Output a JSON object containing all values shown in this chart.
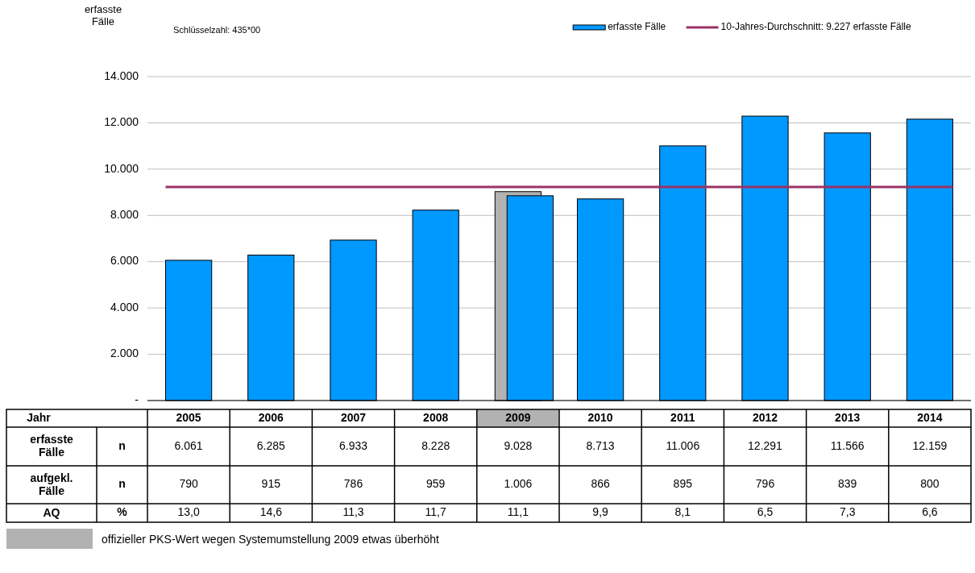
{
  "chart_data": {
    "type": "bar",
    "ylabel": "erfasste Fälle",
    "subtitle": "Schlüsselzahl: 435*00",
    "categories": [
      "2005",
      "2006",
      "2007",
      "2008",
      "2009",
      "2010",
      "2011",
      "2012",
      "2013",
      "2014"
    ],
    "series": [
      {
        "name": "erfasste Fälle",
        "color": "#0099ff",
        "values": [
          6061,
          6285,
          6933,
          8228,
          8850,
          8713,
          11006,
          12291,
          11566,
          12159
        ]
      },
      {
        "color": "#b2b2b2",
        "values": [
          null,
          null,
          null,
          null,
          9028,
          null,
          null,
          null,
          null,
          null
        ]
      }
    ],
    "ref_lines": [
      {
        "axis": "y",
        "value": 9227,
        "label": "10-Jahres-Durchschnitt: 9.227 erfasste Fälle",
        "color": "#993366"
      }
    ],
    "ylim": [
      0,
      14000
    ],
    "yticks": [
      {
        "value": 0,
        "label": "-"
      },
      {
        "value": 2000,
        "label": "2.000"
      },
      {
        "value": 4000,
        "label": "4.000"
      },
      {
        "value": 6000,
        "label": "6.000"
      },
      {
        "value": 8000,
        "label": "8.000"
      },
      {
        "value": 10000,
        "label": "10.000"
      },
      {
        "value": 12000,
        "label": "12.000"
      },
      {
        "value": 14000,
        "label": "14.000"
      }
    ],
    "grid": "y",
    "legend": "top right",
    "annotations": [
      "Jahr",
      "erfasste Fälle",
      "n",
      "6.061",
      "6.285",
      "6.933",
      "8.228",
      "9.028",
      "8.713",
      "11.006",
      "12.291",
      "11.566",
      "12.159",
      "aufgekl. Fälle",
      "n",
      "790",
      "915",
      "786",
      "959",
      "1.006",
      "866",
      "895",
      "796",
      "839",
      "800",
      "AQ",
      "%",
      "13,0",
      "14,6",
      "11,3",
      "11,7",
      "11,1",
      "9,9",
      "8,1",
      "6,5",
      "7,3",
      "6,6",
      "offizieller PKS-Wert wegen Systemumstellung 2009 etwas überhöht"
    ]
  }
}
